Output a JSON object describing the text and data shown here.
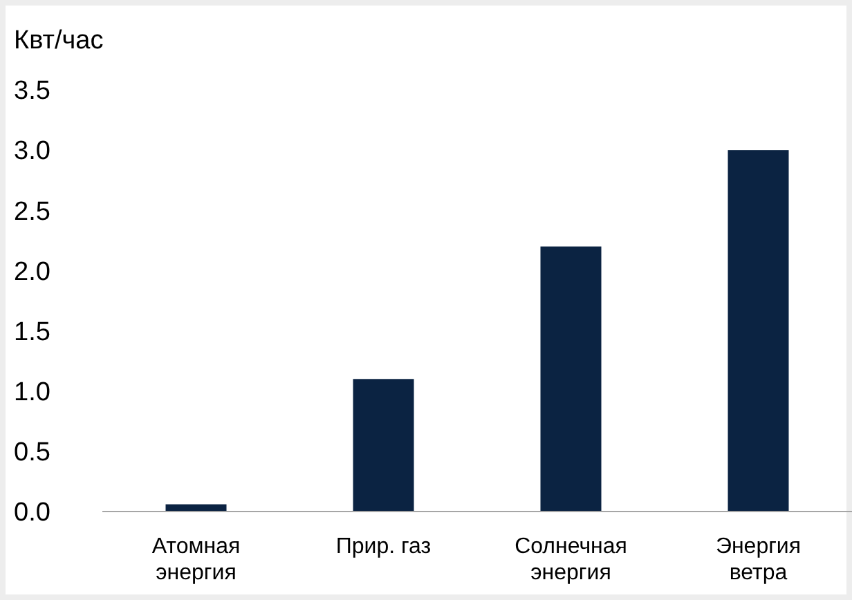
{
  "chart_data": {
    "type": "bar",
    "ylabel": "Квт/час",
    "categories": [
      "Атомная энергия",
      "Прир. газ",
      "Солнечная энергия",
      "Энергия ветра"
    ],
    "values": [
      0.06,
      1.1,
      2.2,
      3.0
    ],
    "color": "#0b2342",
    "ylim": [
      0,
      3.5
    ],
    "yticks": [
      {
        "value": 0,
        "label": "0.0"
      },
      {
        "value": 0.5,
        "label": "0.5"
      },
      {
        "value": 1,
        "label": "1.0"
      },
      {
        "value": 1.5,
        "label": "1.5"
      },
      {
        "value": 2,
        "label": "2.0"
      },
      {
        "value": 2.5,
        "label": "2.5"
      },
      {
        "value": 3,
        "label": "3.0"
      },
      {
        "value": 3.5,
        "label": "3.5"
      }
    ],
    "grid": false
  }
}
